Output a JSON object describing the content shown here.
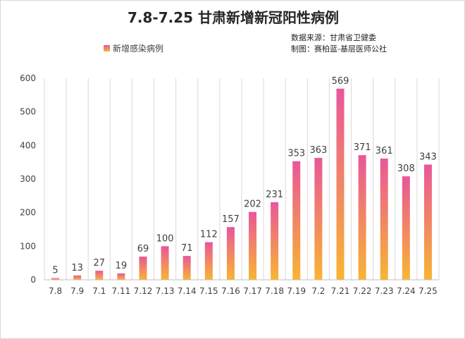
{
  "chart_data": {
    "type": "bar",
    "title": "7.8-7.25 甘肃新增新冠阳性病例",
    "source_lines": [
      "数据来源：甘肃省卫健委",
      "制图：赛柏蓝-基层医师公社"
    ],
    "legend": [
      "新增感染病例"
    ],
    "categories": [
      "7.8",
      "7.9",
      "7.1",
      "7.11",
      "7.12",
      "7.13",
      "7.14",
      "7.15",
      "7.16",
      "7.17",
      "7.18",
      "7.19",
      "7.2",
      "7.21",
      "7.22",
      "7.23",
      "7.24",
      "7.25"
    ],
    "series": [
      {
        "name": "新增感染病例",
        "values": [
          5,
          13,
          27,
          19,
          69,
          100,
          71,
          112,
          157,
          202,
          231,
          353,
          363,
          569,
          371,
          361,
          308,
          343
        ]
      }
    ],
    "ylim": [
      0,
      600
    ],
    "yticks": [
      0,
      100,
      200,
      300,
      400,
      500,
      600
    ],
    "xlabel": "",
    "ylabel": "",
    "grid": "vertical-category",
    "legend_position": "top-left",
    "colors": {
      "bar_top": "#e9579a",
      "bar_bottom": "#f8b532",
      "grid": "#d9d9d9",
      "axis": "#bfbfbf"
    }
  }
}
